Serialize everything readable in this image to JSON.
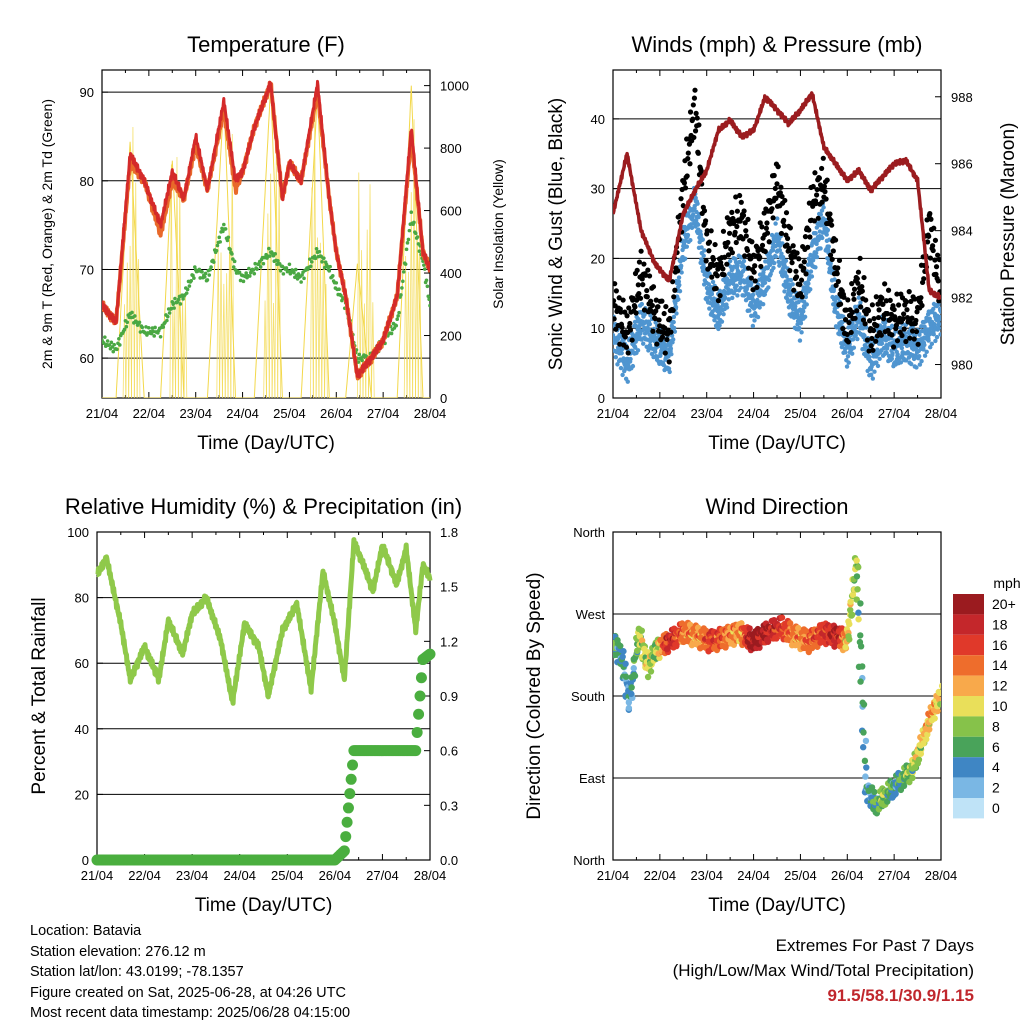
{
  "colors": {
    "temp2m": "#e8692a",
    "temp9m": "#d42a2a",
    "dewpoint": "#4aa843",
    "solar": "#f3d84a",
    "wind": "#4f95d0",
    "gust": "#000000",
    "pressure": "#9b1c1f",
    "rh": "#8fc94a",
    "precip": "#4aae3f",
    "extremes": "#c0272d"
  },
  "x_ticks": [
    "21/04",
    "22/04",
    "23/04",
    "24/04",
    "25/04",
    "26/04",
    "27/04",
    "28/04"
  ],
  "x_label": "Time (Day/UTC)",
  "chart_data": [
    {
      "id": "temperature",
      "type": "line",
      "title": "Temperature (F)",
      "xlabel": "Time (Day/UTC)",
      "ylabel": "2m & 9m T (Red, Orange) & 2m Td (Green)",
      "y2label": "Solar Insolation (Yellow)",
      "ylim": [
        55.5,
        92.5
      ],
      "yticks": [
        60,
        70,
        80,
        90
      ],
      "y2lim": [
        0,
        1050
      ],
      "y2ticks": [
        0,
        200,
        400,
        600,
        800,
        1000
      ],
      "grid": "horizontal",
      "x": [
        0,
        0.3,
        0.6,
        0.9,
        1.25,
        1.5,
        1.75,
        2.0,
        2.25,
        2.6,
        2.85,
        3.0,
        3.25,
        3.6,
        3.85,
        4.0,
        4.25,
        4.6,
        4.85,
        5.0,
        5.2,
        5.45,
        5.75,
        6.0,
        6.3,
        6.6,
        6.85,
        7.0
      ],
      "series": [
        {
          "name": "2m T",
          "values": [
            66,
            64,
            82,
            80,
            74,
            80,
            78,
            84,
            79,
            88,
            79,
            81,
            86,
            91,
            78,
            82,
            80,
            90,
            78,
            72,
            67,
            58,
            60,
            62,
            67,
            85,
            72,
            70
          ]
        },
        {
          "name": "9m T",
          "values": [
            66,
            64,
            83,
            80,
            75,
            81,
            78,
            85,
            79,
            89,
            80,
            81,
            86,
            91,
            78,
            82,
            80,
            91,
            78,
            72,
            67,
            58,
            60,
            62,
            67,
            86,
            72,
            70
          ]
        },
        {
          "name": "2m Td",
          "values": [
            62,
            61,
            65,
            63,
            63,
            66,
            67,
            70,
            69,
            75,
            70,
            69,
            70,
            72,
            70,
            70,
            69,
            72,
            70,
            68,
            66,
            60,
            60,
            62,
            64,
            76,
            71,
            66
          ]
        },
        {
          "name": "Solar",
          "values": [
            0,
            0,
            820,
            0,
            0,
            760,
            0,
            0,
            0,
            960,
            0,
            0,
            0,
            1000,
            0,
            0,
            0,
            980,
            0,
            0,
            0,
            430,
            0,
            0,
            0,
            1000,
            0,
            0
          ]
        }
      ]
    },
    {
      "id": "winds",
      "type": "line",
      "title": "Winds (mph) & Pressure (mb)",
      "xlabel": "Time (Day/UTC)",
      "ylabel": "Sonic Wind & Gust (Blue, Black)",
      "y2label": "Station Pressure (Maroon)",
      "ylim": [
        0,
        47
      ],
      "yticks": [
        0,
        10,
        20,
        30,
        40
      ],
      "y2lim": [
        979.0,
        988.8
      ],
      "y2ticks": [
        980,
        982,
        984,
        986,
        988
      ],
      "grid": "horizontal",
      "x": [
        0,
        0.3,
        0.6,
        0.9,
        1.2,
        1.5,
        1.75,
        2.0,
        2.25,
        2.5,
        2.75,
        3.0,
        3.25,
        3.5,
        3.75,
        4.0,
        4.25,
        4.5,
        4.75,
        5.0,
        5.25,
        5.5,
        5.75,
        6.0,
        6.25,
        6.5,
        6.75,
        7.0
      ],
      "series": [
        {
          "name": "Sonic Wind",
          "values": [
            9,
            5,
            11,
            8,
            6,
            22,
            28,
            16,
            12,
            17,
            18,
            13,
            17,
            23,
            15,
            11,
            20,
            26,
            13,
            7,
            12,
            5,
            9,
            7,
            8,
            7,
            10,
            12
          ]
        },
        {
          "name": "Gust",
          "values": [
            14,
            9,
            18,
            12,
            9,
            30,
            42,
            22,
            17,
            24,
            26,
            18,
            24,
            31,
            22,
            16,
            28,
            31,
            19,
            10,
            17,
            9,
            13,
            11,
            12,
            11,
            25,
            15
          ]
        },
        {
          "name": "Pressure",
          "values": [
            984.5,
            986.3,
            984.0,
            983.0,
            982.5,
            984.5,
            985.2,
            985.8,
            987.0,
            987.3,
            986.8,
            987.0,
            988.0,
            987.6,
            987.2,
            987.6,
            988.1,
            986.5,
            986.0,
            985.5,
            985.8,
            985.2,
            985.6,
            986.0,
            986.1,
            985.5,
            982.2,
            982.0
          ]
        }
      ]
    },
    {
      "id": "humidity",
      "type": "line",
      "title": "Relative Humidity (%) & Precipitation (in)",
      "xlabel": "Time (Day/UTC)",
      "ylabel": "Percent & Total Rainfall",
      "ylim": [
        0,
        100
      ],
      "yticks": [
        0,
        20,
        40,
        60,
        80,
        100
      ],
      "y2lim": [
        0,
        1.8
      ],
      "y2ticks": [
        "0.0",
        "0.3",
        "0.6",
        "0.9",
        "1.2",
        "1.5",
        "1.8"
      ],
      "grid": "horizontal",
      "x": [
        0,
        0.2,
        0.5,
        0.7,
        1.0,
        1.3,
        1.5,
        1.8,
        2.0,
        2.3,
        2.6,
        2.85,
        3.1,
        3.4,
        3.6,
        3.9,
        4.2,
        4.5,
        4.75,
        5.0,
        5.2,
        5.4,
        5.6,
        5.8,
        6.0,
        6.3,
        6.5,
        6.7,
        6.85,
        7.0
      ],
      "series": [
        {
          "name": "RH",
          "values": [
            87,
            92,
            72,
            55,
            65,
            55,
            73,
            63,
            75,
            80,
            67,
            48,
            72,
            65,
            50,
            70,
            78,
            52,
            88,
            72,
            55,
            97,
            90,
            82,
            96,
            84,
            95,
            70,
            90,
            86
          ]
        },
        {
          "name": "Precipitation",
          "values": [
            0,
            0,
            0,
            0,
            0,
            0,
            0,
            0,
            0,
            0,
            0,
            0,
            0,
            0,
            0,
            0,
            0,
            0,
            0,
            0,
            0.05,
            0.6,
            0.6,
            0.6,
            0.6,
            0.6,
            0.6,
            0.6,
            1.1,
            1.13
          ]
        }
      ]
    },
    {
      "id": "direction",
      "type": "scatter",
      "title": "Wind Direction",
      "xlabel": "Time (Day/UTC)",
      "ylabel": "Direction (Colored By Speed)",
      "yticks": [
        "North",
        "East",
        "South",
        "West",
        "North"
      ],
      "ylim": [
        0,
        360
      ],
      "grid": "horizontal",
      "x": [
        0,
        0.2,
        0.35,
        0.55,
        0.75,
        0.9,
        1.2,
        1.5,
        1.8,
        2.1,
        2.4,
        2.7,
        3.0,
        3.3,
        3.6,
        3.9,
        4.2,
        4.5,
        4.8,
        5.0,
        5.2,
        5.4,
        5.6,
        5.8,
        6.0,
        6.2,
        6.4,
        6.6,
        6.8,
        7.0
      ],
      "values": [
        240,
        220,
        170,
        250,
        210,
        230,
        240,
        250,
        245,
        240,
        245,
        250,
        240,
        250,
        255,
        245,
        240,
        250,
        245,
        240,
        330,
        80,
        60,
        70,
        80,
        90,
        100,
        130,
        160,
        180
      ],
      "speed": [
        6,
        4,
        3,
        8,
        10,
        7,
        18,
        14,
        12,
        16,
        14,
        12,
        20,
        18,
        16,
        12,
        14,
        16,
        18,
        10,
        8,
        3,
        6,
        8,
        4,
        6,
        8,
        10,
        12,
        10
      ],
      "legend": {
        "title": "mph",
        "labels": [
          "20+",
          "18",
          "16",
          "14",
          "12",
          "10",
          "8",
          "6",
          "4",
          "2",
          "0"
        ],
        "colors": [
          "#9b1b1f",
          "#c4272b",
          "#e0392a",
          "#ee6d2c",
          "#f8a94b",
          "#e9df5a",
          "#86c24a",
          "#49a35a",
          "#3f86c4",
          "#7ab7e4",
          "#bfe3f7"
        ]
      }
    }
  ],
  "info": {
    "location": "Location: Batavia",
    "elevation": "Station elevation: 276.12 m",
    "latlon": "Station lat/lon: 43.0199; -78.1357",
    "created": "Figure created on Sat, 2025-06-28, at 04:26 UTC",
    "timestamp": "Most recent data timestamp: 2025/06/28 04:15:00"
  },
  "extremes": {
    "title": "Extremes For Past 7 Days",
    "subtitle": "(High/Low/Max Wind/Total Precipitation)",
    "values": "91.5/58.1/30.9/1.15"
  }
}
